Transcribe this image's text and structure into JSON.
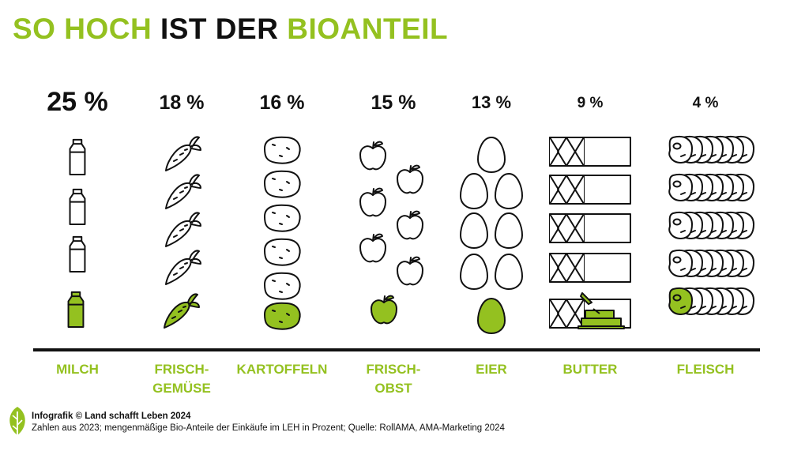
{
  "title": {
    "part1": "SO HOCH",
    "part2": "IST DER",
    "part3": "BIOANTEIL"
  },
  "colors": {
    "accent": "#94c120",
    "ink": "#111111"
  },
  "chart_data": {
    "type": "pictograph",
    "unit": "%",
    "categories": [
      {
        "label": [
          "MILCH"
        ],
        "value": 25,
        "value_label": "25 %",
        "icon": "milk-bottle-icon"
      },
      {
        "label": [
          "FRISCH-",
          "GEMÜSE"
        ],
        "value": 18,
        "value_label": "18 %",
        "icon": "carrot-icon"
      },
      {
        "label": [
          "KARTOFFELN"
        ],
        "value": 16,
        "value_label": "16 %",
        "icon": "potato-icon"
      },
      {
        "label": [
          "FRISCH-",
          "OBST"
        ],
        "value": 15,
        "value_label": "15 %",
        "icon": "apple-icon"
      },
      {
        "label": [
          "EIER"
        ],
        "value": 13,
        "value_label": "13 %",
        "icon": "egg-icon"
      },
      {
        "label": [
          "BUTTER"
        ],
        "value": 9,
        "value_label": "9 %",
        "icon": "butter-icon"
      },
      {
        "label": [
          "FLEISCH"
        ],
        "value": 4,
        "value_label": "4 %",
        "icon": "steak-icon"
      }
    ]
  },
  "footer": {
    "line1": "Infografik © Land schafft Leben 2024",
    "line2": "Zahlen aus 2023; mengenmäßige Bio-Anteile der Einkäufe im LEH in Prozent; Quelle: RollAMA, AMA-Marketing 2024"
  }
}
